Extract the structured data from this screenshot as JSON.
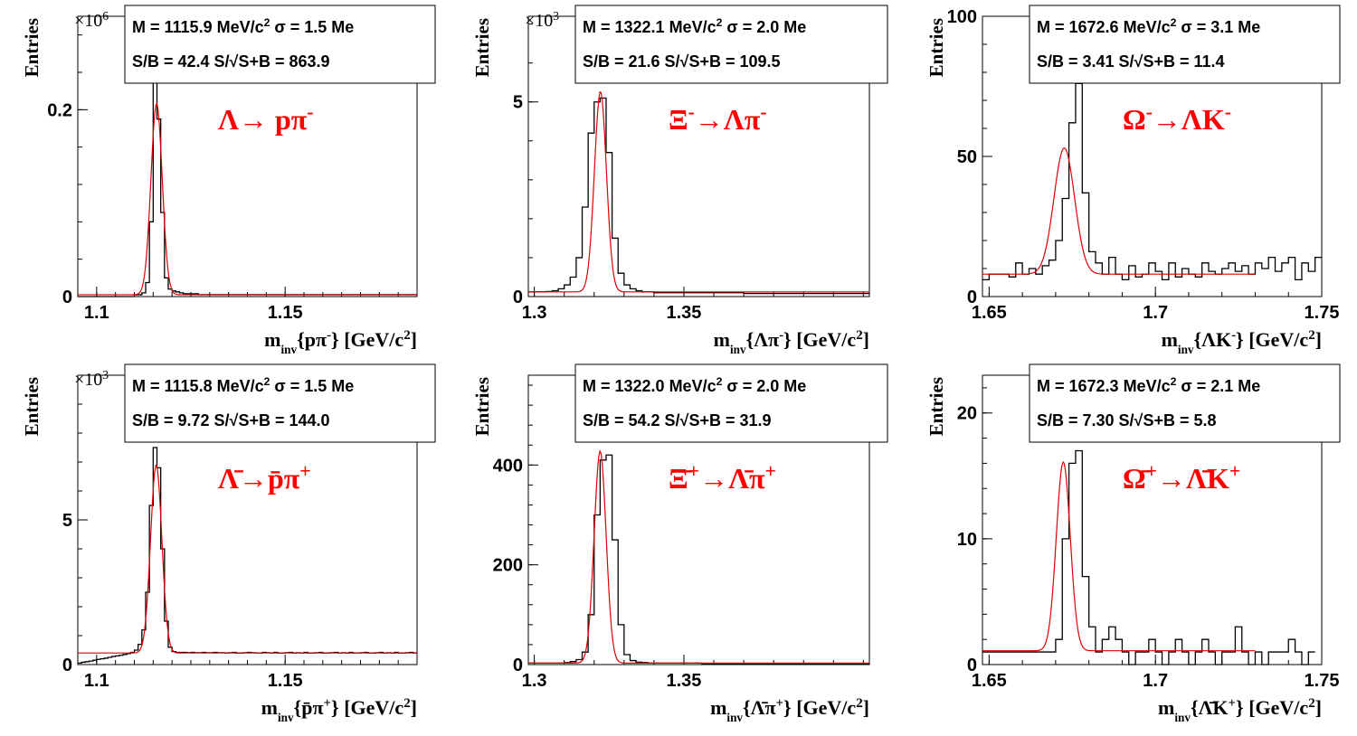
{
  "colors": {
    "histogram": "#000000",
    "fit": "#dd0000",
    "decay_label": "#ff0000",
    "frame": "#000000"
  },
  "chart_data": [
    {
      "type": "histogram",
      "ylabel": "Entries",
      "xlabel": "m_inv{pπ⁻} [GeV/c²]",
      "y_multiplier": "×10⁶",
      "decay": "Λ→ pπ⁻",
      "stats": {
        "mass": "M = 1115.9 MeV/c² σ = 1.5 Me",
        "sb": "S/B = 42.4   S/√S+B = 863.9"
      },
      "xlim": [
        1.095,
        1.185
      ],
      "ylim": [
        0,
        0.3
      ],
      "xticks": [
        "1.1",
        "1.15"
      ],
      "yticks": [
        "0",
        "0.2"
      ],
      "fit": {
        "mean": 1.1159,
        "sigma": 0.0015,
        "amplitude": 0.205,
        "background": 0.002
      },
      "bins": {
        "start": 1.095,
        "width": 0.001,
        "values": [
          0,
          0,
          0,
          0,
          0,
          0,
          0,
          0,
          0,
          0,
          0,
          0,
          0,
          0,
          0,
          0.002,
          0.002,
          0.004,
          0.015,
          0.08,
          0.235,
          0.19,
          0.09,
          0.02,
          0.008,
          0.006,
          0.005,
          0.004,
          0.003,
          0.003,
          0.003,
          0.003,
          0.002,
          0.002,
          0.002,
          0.002,
          0.002,
          0.002,
          0.002,
          0.002,
          0.002,
          0.002,
          0.002,
          0.002,
          0.002,
          0.002,
          0.002,
          0.002,
          0.002,
          0.002,
          0.002,
          0.002,
          0.002,
          0.002,
          0.002,
          0.002,
          0.002,
          0.002,
          0.002,
          0.002,
          0.002,
          0.002,
          0.002,
          0.002,
          0.002,
          0.002,
          0.002,
          0.002,
          0.002,
          0.002,
          0.002,
          0.002,
          0.002,
          0.002,
          0.002,
          0.002,
          0.002,
          0.002,
          0.002,
          0.002,
          0.002,
          0.002,
          0.002,
          0.002,
          0.002,
          0.002,
          0.002,
          0.002,
          0.002,
          0.002
        ]
      }
    },
    {
      "type": "histogram",
      "ylabel": "Entries",
      "xlabel": "m_inv{Λπ⁻} [GeV/c²]",
      "y_multiplier": "×10³",
      "decay": "Ξ⁻→Λπ⁻",
      "stats": {
        "mass": "M = 1322.1 MeV/c² σ = 2.0 Me",
        "sb": "S/B = 21.6    S/√S+B = 109.5"
      },
      "xlim": [
        1.298,
        1.412
      ],
      "ylim": [
        0,
        7.2
      ],
      "xticks": [
        "1.3",
        "1.35"
      ],
      "yticks": [
        "0",
        "5"
      ],
      "fit": {
        "mean": 1.3221,
        "sigma": 0.002,
        "amplitude": 5.15,
        "background": 0.12
      },
      "bins": {
        "start": 1.298,
        "width": 0.002,
        "values": [
          0.12,
          0.12,
          0.12,
          0.13,
          0.15,
          0.2,
          0.3,
          0.5,
          1.0,
          2.3,
          4.2,
          5.0,
          5.1,
          3.7,
          1.5,
          0.6,
          0.3,
          0.2,
          0.15,
          0.12,
          0.12,
          0.1,
          0.1,
          0.1,
          0.1,
          0.1,
          0.1,
          0.1,
          0.1,
          0.1,
          0.1,
          0.1,
          0.1,
          0.1,
          0.1,
          0.1,
          0.08,
          0.08,
          0.08,
          0.08,
          0.08,
          0.08,
          0.08,
          0.08,
          0.08,
          0.08,
          0.08,
          0.08,
          0.08,
          0.08,
          0.08,
          0.08,
          0.08,
          0.08,
          0.08,
          0.08,
          0.08
        ]
      }
    },
    {
      "type": "histogram",
      "ylabel": "Entries",
      "xlabel": "m_inv{ΛK⁻} [GeV/c²]",
      "y_multiplier": "",
      "decay": "Ω⁻→ΛK⁻",
      "stats": {
        "mass": "M = 1672.6 MeV/c² σ = 3.1 Me",
        "sb": "S/B = 3.41    S/√S+B = 11.4"
      },
      "xlim": [
        1.648,
        1.75
      ],
      "ylim": [
        0,
        100
      ],
      "xticks": [
        "1.65",
        "1.7",
        "1.75"
      ],
      "yticks": [
        "0",
        "50",
        "100"
      ],
      "fit": {
        "mean": 1.6726,
        "sigma": 0.0031,
        "amplitude": 45,
        "background": 8,
        "fit_end": 1.73
      },
      "bins": {
        "start": 1.648,
        "width": 0.002,
        "values": [
          6,
          8,
          8,
          8,
          7,
          12,
          8,
          10,
          8,
          11,
          13,
          20,
          35,
          62,
          76,
          37,
          16,
          12,
          8,
          14,
          8,
          6,
          11,
          7,
          8,
          12,
          9,
          6,
          12,
          7,
          10,
          8,
          7,
          12,
          9,
          8,
          10,
          12,
          9,
          11,
          8,
          12,
          10,
          14,
          9,
          12,
          14,
          6,
          12,
          9,
          14
        ]
      }
    },
    {
      "type": "histogram",
      "ylabel": "Entries",
      "xlabel": "m_inv{p̄π⁺} [GeV/c²]",
      "y_multiplier": "×10³",
      "decay": "Λ̄→p̄π⁺",
      "stats": {
        "mass": "M = 1115.8 MeV/c² σ = 1.5 Me",
        "sb": "S/B = 9.72    S/√S+B = 144.0"
      },
      "xlim": [
        1.095,
        1.185
      ],
      "ylim": [
        0,
        10
      ],
      "xticks": [
        "1.1",
        "1.15"
      ],
      "yticks": [
        "0",
        "5"
      ],
      "fit": {
        "mean": 1.1158,
        "sigma": 0.0015,
        "amplitude": 6.5,
        "background": 0.4
      },
      "bins": {
        "start": 1.095,
        "width": 0.001,
        "values": [
          0.05,
          0.08,
          0.1,
          0.12,
          0.15,
          0.18,
          0.2,
          0.22,
          0.25,
          0.28,
          0.3,
          0.32,
          0.35,
          0.38,
          0.42,
          0.5,
          0.7,
          1.2,
          2.5,
          5.5,
          7.5,
          6.8,
          4.0,
          1.5,
          0.6,
          0.45,
          0.42,
          0.42,
          0.42,
          0.41,
          0.42,
          0.41,
          0.41,
          0.42,
          0.41,
          0.41,
          0.42,
          0.41,
          0.41,
          0.4,
          0.41,
          0.42,
          0.4,
          0.4,
          0.41,
          0.42,
          0.41,
          0.4,
          0.4,
          0.42,
          0.41,
          0.4,
          0.42,
          0.4,
          0.4,
          0.41,
          0.42,
          0.4,
          0.41,
          0.4,
          0.42,
          0.4,
          0.4,
          0.41,
          0.42,
          0.4,
          0.4,
          0.41,
          0.42,
          0.4,
          0.41,
          0.4,
          0.42,
          0.4,
          0.4,
          0.41,
          0.42,
          0.4,
          0.4,
          0.41,
          0.42,
          0.4,
          0.41,
          0.4,
          0.42,
          0.4,
          0.4,
          0.41,
          0.42,
          0.4
        ]
      }
    },
    {
      "type": "histogram",
      "ylabel": "Entries",
      "xlabel": "m_inv{Λ̄π⁺} [GeV/c²]",
      "y_multiplier": "",
      "decay": "Ξ̄⁺→Λ̄π⁺",
      "stats": {
        "mass": "M = 1322.0 MeV/c² σ = 2.0 Me",
        "sb": "S/B = 54.2    S/√S+B = 31.9"
      },
      "xlim": [
        1.298,
        1.412
      ],
      "ylim": [
        0,
        580
      ],
      "xticks": [
        "1.3",
        "1.35"
      ],
      "yticks": [
        "0",
        "200",
        "400"
      ],
      "fit": {
        "mean": 1.322,
        "sigma": 0.002,
        "amplitude": 425,
        "background": 3
      },
      "bins": {
        "start": 1.298,
        "width": 0.002,
        "values": [
          3,
          3,
          3,
          3,
          3,
          3,
          4,
          6,
          10,
          25,
          100,
          300,
          410,
          420,
          250,
          80,
          20,
          8,
          5,
          4,
          3,
          3,
          3,
          3,
          3,
          3,
          3,
          3,
          3,
          2,
          2,
          2,
          2,
          2,
          2,
          2,
          2,
          2,
          2,
          2,
          2,
          2,
          2,
          2,
          2,
          2,
          2,
          2,
          2,
          2,
          2,
          2,
          2,
          2,
          2,
          2,
          2
        ]
      }
    },
    {
      "type": "histogram",
      "ylabel": "Entries",
      "xlabel": "m_inv{Λ̄K⁺} [GeV/c²]",
      "y_multiplier": "",
      "decay": "Ω̄⁺→Λ̄K⁺",
      "stats": {
        "mass": "M = 1672.3 MeV/c² σ = 2.1 Me",
        "sb": "S/B = 7.30    S/√S+B = 5.8"
      },
      "xlim": [
        1.648,
        1.75
      ],
      "ylim": [
        0,
        23
      ],
      "xticks": [
        "1.65",
        "1.7",
        "1.75"
      ],
      "yticks": [
        "0",
        "10",
        "20"
      ],
      "fit": {
        "mean": 1.6723,
        "sigma": 0.0021,
        "amplitude": 15,
        "background": 1.1,
        "fit_end": 1.73
      },
      "bins": {
        "start": 1.648,
        "width": 0.002,
        "values": [
          1,
          1,
          1,
          1,
          1,
          1,
          1,
          1,
          1,
          1,
          1,
          2,
          10,
          16,
          17,
          7,
          3,
          1,
          2,
          3,
          2,
          1,
          0,
          1,
          1,
          2,
          1,
          0,
          1,
          2,
          1,
          0,
          1,
          2,
          1,
          0,
          1,
          1,
          3,
          1,
          0,
          1,
          0,
          1,
          1,
          1,
          2,
          1,
          0,
          1
        ]
      }
    }
  ]
}
